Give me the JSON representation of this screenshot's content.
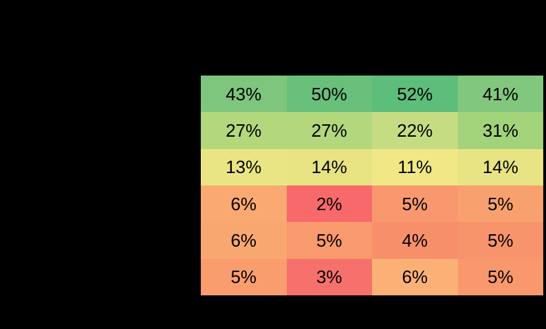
{
  "page": {
    "background": "#000000"
  },
  "chart_data": {
    "type": "heatmap",
    "rows": 6,
    "cols": 4,
    "values": [
      [
        43,
        50,
        52,
        41
      ],
      [
        27,
        27,
        22,
        31
      ],
      [
        13,
        14,
        11,
        14
      ],
      [
        6,
        2,
        5,
        5
      ],
      [
        6,
        5,
        4,
        5
      ],
      [
        5,
        3,
        6,
        5
      ]
    ],
    "cell_labels": [
      [
        "43%",
        "50%",
        "52%",
        "41%"
      ],
      [
        "27%",
        "27%",
        "22%",
        "31%"
      ],
      [
        "13%",
        "14%",
        "11%",
        "14%"
      ],
      [
        "6%",
        "2%",
        "5%",
        "5%"
      ],
      [
        "6%",
        "5%",
        "4%",
        "5%"
      ],
      [
        "5%",
        "3%",
        "6%",
        "5%"
      ]
    ],
    "cell_colors": [
      [
        "#7EC67D",
        "#68C07B",
        "#5DBD7A",
        "#82C77E"
      ],
      [
        "#B2D77D",
        "#B2D77D",
        "#C6DC82",
        "#A2D37B"
      ],
      [
        "#EAE584",
        "#E8E383",
        "#F0E886",
        "#E8E383"
      ],
      [
        "#F9A971",
        "#F8696B",
        "#F9986E",
        "#F9A06F"
      ],
      [
        "#F9A771",
        "#F9996E",
        "#F88F6B",
        "#F8946C"
      ],
      [
        "#F99D6F",
        "#F7716C",
        "#FBB175",
        "#F9986D"
      ]
    ],
    "colorscale": "red-yellow-green",
    "text_color": "#000000",
    "grid": false,
    "legend_position": "none"
  }
}
